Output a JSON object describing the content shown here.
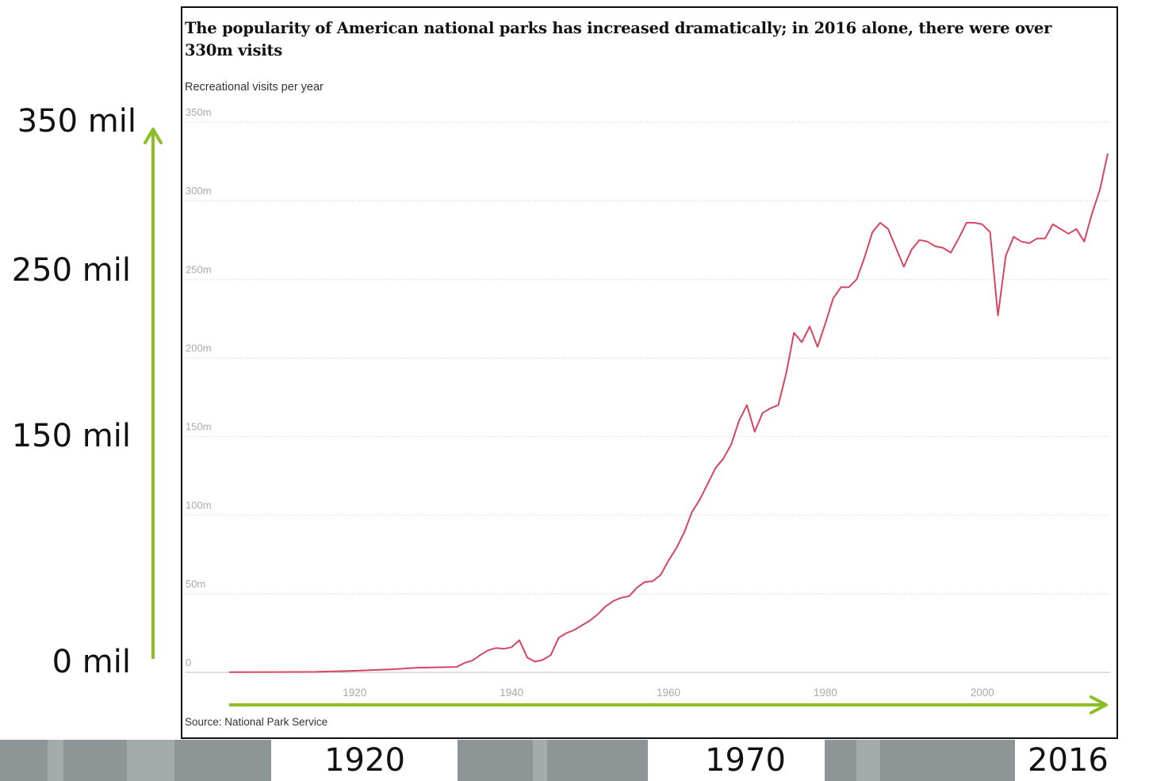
{
  "chart_data": {
    "type": "line",
    "title": "The popularity of American national parks has increased dramatically; in 2016 alone, there were over 330m visits",
    "subtitle": "Recreational visits per year",
    "source": "Source: National Park Service",
    "ylim": [
      0,
      350
    ],
    "xlim": [
      1904,
      2016
    ],
    "y_ticks": [
      {
        "value": 0,
        "label": "0"
      },
      {
        "value": 50,
        "label": "50m"
      },
      {
        "value": 100,
        "label": "100m"
      },
      {
        "value": 150,
        "label": "150m"
      },
      {
        "value": 200,
        "label": "200m"
      },
      {
        "value": 250,
        "label": "250m"
      },
      {
        "value": 300,
        "label": "300m"
      },
      {
        "value": 350,
        "label": "350m"
      }
    ],
    "x_ticks": [
      {
        "value": 1920,
        "label": "1920"
      },
      {
        "value": 1940,
        "label": "1940"
      },
      {
        "value": 1960,
        "label": "1960"
      },
      {
        "value": 1980,
        "label": "1980"
      },
      {
        "value": 2000,
        "label": "2000"
      }
    ],
    "grid": true,
    "line_color": "#d6455f",
    "series": [
      {
        "x": [
          1904,
          1910,
          1915,
          1920,
          1925,
          1928,
          1930,
          1933,
          1934,
          1935,
          1936,
          1937,
          1938,
          1939,
          1940,
          1941,
          1942,
          1943,
          1944,
          1945,
          1946,
          1947,
          1948,
          1949,
          1950,
          1951,
          1952,
          1953,
          1954,
          1955,
          1956,
          1957,
          1958,
          1959,
          1960,
          1961,
          1962,
          1963,
          1964,
          1965,
          1966,
          1967,
          1968,
          1969,
          1970,
          1971,
          1972,
          1973,
          1974,
          1975,
          1976,
          1977,
          1978,
          1979,
          1980,
          1981,
          1982,
          1983,
          1984,
          1985,
          1986,
          1987,
          1988,
          1989,
          1990,
          1991,
          1992,
          1993,
          1994,
          1995,
          1996,
          1997,
          1998,
          1999,
          2000,
          2001,
          2002,
          2003,
          2004,
          2005,
          2006,
          2007,
          2008,
          2009,
          2010,
          2011,
          2012,
          2013,
          2014,
          2015,
          2016
        ],
        "values": [
          0.1,
          0.2,
          0.3,
          1,
          2,
          3,
          3.2,
          3.5,
          6,
          7.5,
          11,
          14,
          15.5,
          15,
          16,
          20.5,
          9.5,
          6.8,
          8,
          11,
          22,
          25,
          27,
          30,
          33,
          37,
          42,
          45.5,
          47.5,
          48.5,
          54,
          57.5,
          58,
          62,
          71,
          79,
          89,
          102,
          110,
          120,
          130,
          136,
          145,
          160,
          170,
          153,
          165,
          168,
          170,
          190,
          216,
          210,
          220,
          207,
          222,
          238,
          245,
          245,
          250,
          264,
          280,
          286,
          282,
          270,
          258,
          269,
          275,
          274,
          271,
          270,
          267,
          276,
          286,
          286,
          285,
          280,
          227,
          265,
          277,
          274,
          273,
          276,
          276,
          285,
          282,
          279,
          282,
          274,
          292,
          307,
          330
        ]
      }
    ],
    "annotations": {
      "y_labels": [
        {
          "value": 350,
          "label": "350 mil"
        },
        {
          "value": 250,
          "label": "250 mil"
        },
        {
          "value": 150,
          "label": "150 mil"
        },
        {
          "value": 0,
          "label": "0 mil"
        }
      ],
      "x_labels": [
        {
          "value": 1920,
          "label": "1920"
        },
        {
          "value": 1970,
          "label": "1970"
        },
        {
          "value": 2016,
          "label": "2016"
        }
      ],
      "arrow_color": "#8cbf26"
    }
  }
}
